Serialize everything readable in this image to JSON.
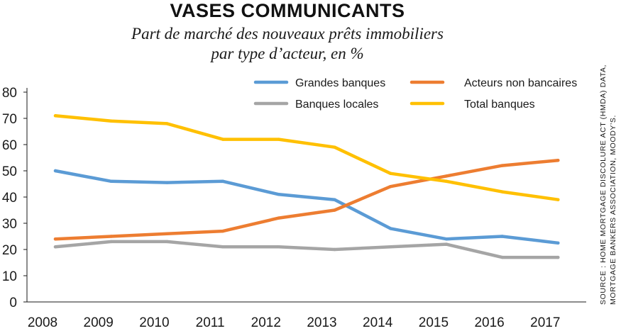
{
  "header": {
    "title": "VASES COMMUNICANTS",
    "subtitle_line1": "Part de marché des nouveaux prêts immobiliers",
    "subtitle_line2": "par type d’acteur, en %"
  },
  "source": {
    "line1": "SOURCE : HOME MORTGAGE DISCOLURE ACT (HMDA) DATA,",
    "line2": "MORTGAGE BANKERS ASSOCIATION, MOODY’S."
  },
  "chart_data": {
    "type": "line",
    "title": "VASES COMMUNICANTS",
    "subtitle": "Part de marché des nouveaux prêts immobiliers par type d’acteur, en %",
    "x": [
      "2008",
      "2009",
      "2010",
      "2011",
      "2012",
      "2013",
      "2014",
      "2015",
      "2016",
      "2017"
    ],
    "ylim": [
      0,
      80
    ],
    "yticks": [
      0,
      10,
      20,
      30,
      40,
      50,
      60,
      70,
      80
    ],
    "grid": false,
    "legend_position": "top-right",
    "series": [
      {
        "name": "Grandes banques",
        "color": "#5b9bd5",
        "values": [
          50,
          46,
          45.5,
          46,
          41,
          39,
          28,
          24,
          25,
          22.5
        ]
      },
      {
        "name": "Acteurs non bancaires",
        "color": "#ed7d31",
        "values": [
          24,
          25,
          26,
          27,
          32,
          35,
          44,
          48,
          52,
          54
        ]
      },
      {
        "name": "Banques locales",
        "color": "#a5a5a5",
        "values": [
          21,
          23,
          23,
          21,
          21,
          20,
          21,
          22,
          17,
          17
        ]
      },
      {
        "name": "Total banques",
        "color": "#ffc000",
        "values": [
          71,
          69,
          68,
          62,
          62,
          59,
          49,
          46,
          42,
          39
        ]
      }
    ]
  }
}
